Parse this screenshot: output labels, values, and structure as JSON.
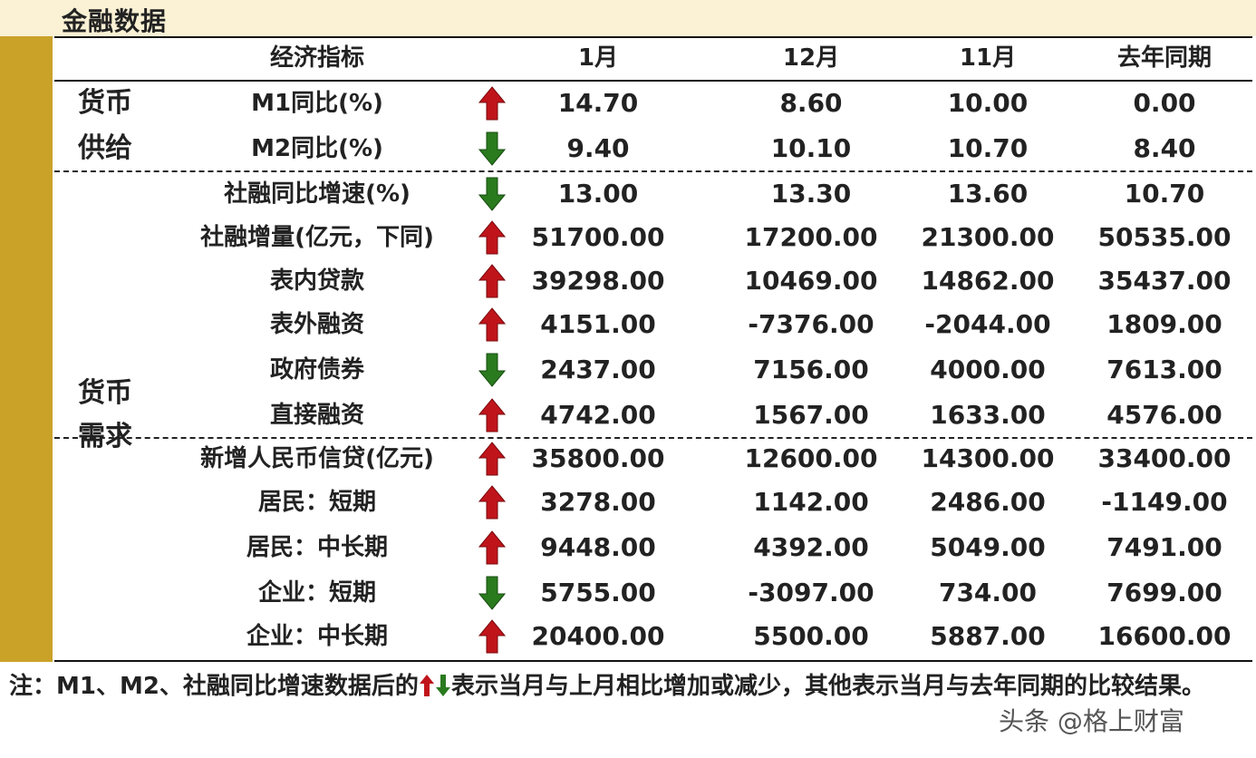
{
  "title": "金融数据",
  "header": {
    "indicator": "经济指标",
    "cols": [
      "1月",
      "12月",
      "11月",
      "去年同期"
    ]
  },
  "groups": {
    "supply_line1": "货币",
    "supply_line2": "供给",
    "demand_line1": "货币",
    "demand_line2": "需求"
  },
  "rows": [
    {
      "label": "M1同比(%)",
      "arrow": "up",
      "values": [
        "14.70",
        "8.60",
        "10.00",
        "0.00"
      ]
    },
    {
      "label": "M2同比(%)",
      "arrow": "down",
      "values": [
        "9.40",
        "10.10",
        "10.70",
        "8.40"
      ]
    },
    {
      "label": "社融同比增速(%)",
      "arrow": "down",
      "values": [
        "13.00",
        "13.30",
        "13.60",
        "10.70"
      ]
    },
    {
      "label": "社融增量(亿元，下同)",
      "arrow": "up",
      "values": [
        "51700.00",
        "17200.00",
        "21300.00",
        "50535.00"
      ]
    },
    {
      "label": "表内贷款",
      "arrow": "up",
      "values": [
        "39298.00",
        "10469.00",
        "14862.00",
        "35437.00"
      ]
    },
    {
      "label": "表外融资",
      "arrow": "up",
      "values": [
        "4151.00",
        "-7376.00",
        "-2044.00",
        "1809.00"
      ]
    },
    {
      "label": "政府债券",
      "arrow": "down",
      "values": [
        "2437.00",
        "7156.00",
        "4000.00",
        "7613.00"
      ]
    },
    {
      "label": "直接融资",
      "arrow": "up",
      "values": [
        "4742.00",
        "1567.00",
        "1633.00",
        "4576.00"
      ]
    },
    {
      "label": "新增人民币信贷(亿元)",
      "arrow": "up",
      "values": [
        "35800.00",
        "12600.00",
        "14300.00",
        "33400.00"
      ]
    },
    {
      "label": "居民：短期",
      "arrow": "up",
      "values": [
        "3278.00",
        "1142.00",
        "2486.00",
        "-1149.00"
      ]
    },
    {
      "label": "居民：中长期",
      "arrow": "up",
      "values": [
        "9448.00",
        "4392.00",
        "5049.00",
        "7491.00"
      ]
    },
    {
      "label": "企业：短期",
      "arrow": "down",
      "values": [
        "5755.00",
        "-3097.00",
        "734.00",
        "7699.00"
      ]
    },
    {
      "label": "企业：中长期",
      "arrow": "up",
      "values": [
        "20400.00",
        "5500.00",
        "5887.00",
        "16600.00"
      ]
    }
  ],
  "colors": {
    "up": "#c0141b",
    "down": "#2a7a1e",
    "gold": "#c9a227",
    "title_bg": "#fbf1d4"
  },
  "footnote": {
    "part1": "注：M1、M2、社融同比增速数据后的",
    "part2": "表示当月与上月相比增加或减少，其他表示当月与去年同期的比较结果。"
  },
  "watermark": "头条 @格上财富"
}
